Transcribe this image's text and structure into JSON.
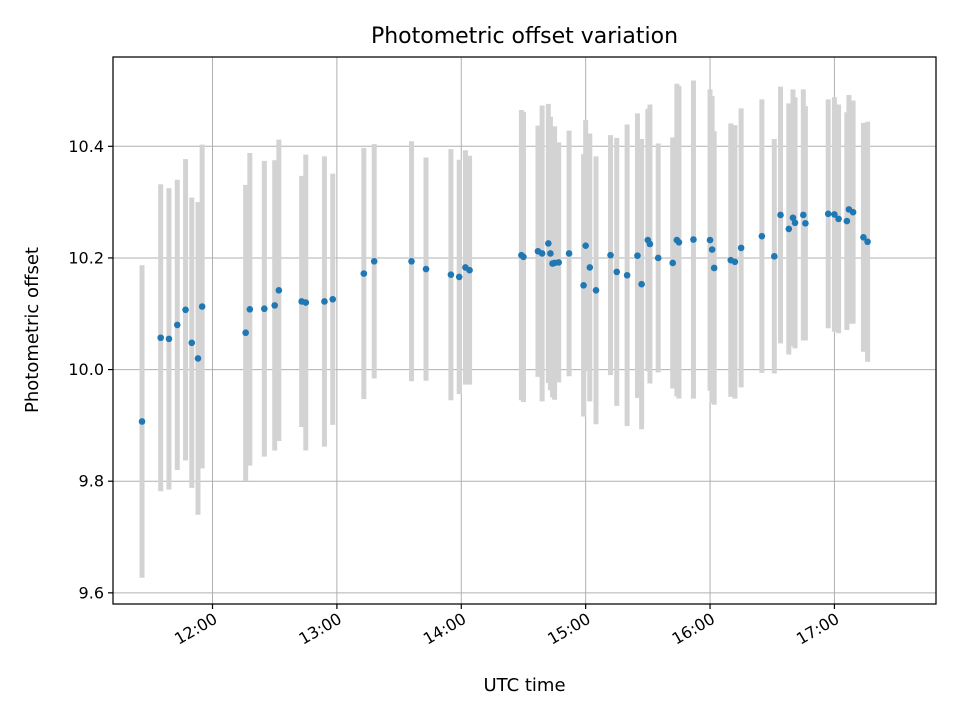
{
  "chart_data": {
    "type": "scatter",
    "title": "Photometric offset variation",
    "xlabel": "UTC time",
    "ylabel": "Photometric offset",
    "x_unit": "UTC clock time (hours)",
    "xlim": [
      "11:12",
      "17:49"
    ],
    "ylim": [
      9.58,
      10.56
    ],
    "x_ticks": [
      "12:00",
      "13:00",
      "14:00",
      "15:00",
      "16:00",
      "17:00"
    ],
    "y_ticks": [
      "9.6",
      "9.8",
      "10.0",
      "10.2",
      "10.4"
    ],
    "grid": true,
    "legend": null,
    "colors": {
      "point": "#1f77b4",
      "errorbar": "#d3d3d3",
      "grid": "#b0b0b0"
    },
    "series": [
      {
        "x": [
          "11:26",
          "11:35",
          "11:39",
          "11:43",
          "11:47",
          "11:50",
          "11:53",
          "11:55",
          "12:16",
          "12:18",
          "12:25",
          "12:30",
          "12:32",
          "12:43",
          "12:45",
          "12:54",
          "12:58",
          "13:13",
          "13:18",
          "13:36",
          "13:43",
          "13:55",
          "13:59",
          "14:02",
          "14:04",
          "14:29",
          "14:30",
          "14:37",
          "14:39",
          "14:42",
          "14:43",
          "14:44",
          "14:45",
          "14:47",
          "14:52",
          "14:59",
          "15:00",
          "15:02",
          "15:05",
          "15:12",
          "15:15",
          "15:20",
          "15:25",
          "15:27",
          "15:30",
          "15:31",
          "15:35",
          "15:42",
          "15:44",
          "15:45",
          "15:52",
          "16:00",
          "16:01",
          "16:02",
          "16:10",
          "16:12",
          "16:15",
          "16:25",
          "16:31",
          "16:34",
          "16:38",
          "16:40",
          "16:41",
          "16:45",
          "16:46",
          "16:57",
          "17:00",
          "17:02",
          "17:06",
          "17:07",
          "17:09",
          "17:14",
          "17:16"
        ],
        "y": [
          9.907,
          10.057,
          10.055,
          10.08,
          10.107,
          10.048,
          10.02,
          10.113,
          10.066,
          10.108,
          10.109,
          10.115,
          10.142,
          10.122,
          10.12,
          10.122,
          10.126,
          10.172,
          10.194,
          10.194,
          10.18,
          10.17,
          10.166,
          10.183,
          10.178,
          10.205,
          10.202,
          10.212,
          10.208,
          10.226,
          10.208,
          10.19,
          10.191,
          10.192,
          10.208,
          10.151,
          10.222,
          10.183,
          10.142,
          10.205,
          10.175,
          10.169,
          10.204,
          10.153,
          10.232,
          10.225,
          10.2,
          10.191,
          10.232,
          10.228,
          10.233,
          10.232,
          10.215,
          10.182,
          10.196,
          10.193,
          10.218,
          10.239,
          10.203,
          10.277,
          10.252,
          10.272,
          10.263,
          10.277,
          10.262,
          10.279,
          10.278,
          10.27,
          10.266,
          10.287,
          10.282,
          10.237,
          10.229
        ],
        "yerr": [
          0.28,
          0.275,
          0.27,
          0.26,
          0.27,
          0.26,
          0.28,
          0.29,
          0.265,
          0.28,
          0.265,
          0.26,
          0.27,
          0.225,
          0.265,
          0.26,
          0.225,
          0.225,
          0.21,
          0.215,
          0.2,
          0.225,
          0.21,
          0.21,
          0.205,
          0.26,
          0.26,
          0.225,
          0.265,
          0.25,
          0.245,
          0.24,
          0.245,
          0.215,
          0.22,
          0.235,
          0.225,
          0.24,
          0.24,
          0.215,
          0.24,
          0.27,
          0.255,
          0.26,
          0.235,
          0.25,
          0.205,
          0.225,
          0.28,
          0.28,
          0.285,
          0.27,
          0.275,
          0.245,
          0.245,
          0.245,
          0.25,
          0.245,
          0.21,
          0.23,
          0.225,
          0.23,
          0.225,
          0.225,
          0.21,
          0.205,
          0.21,
          0.205,
          0.195,
          0.205,
          0.2,
          0.205,
          0.215
        ]
      }
    ]
  }
}
